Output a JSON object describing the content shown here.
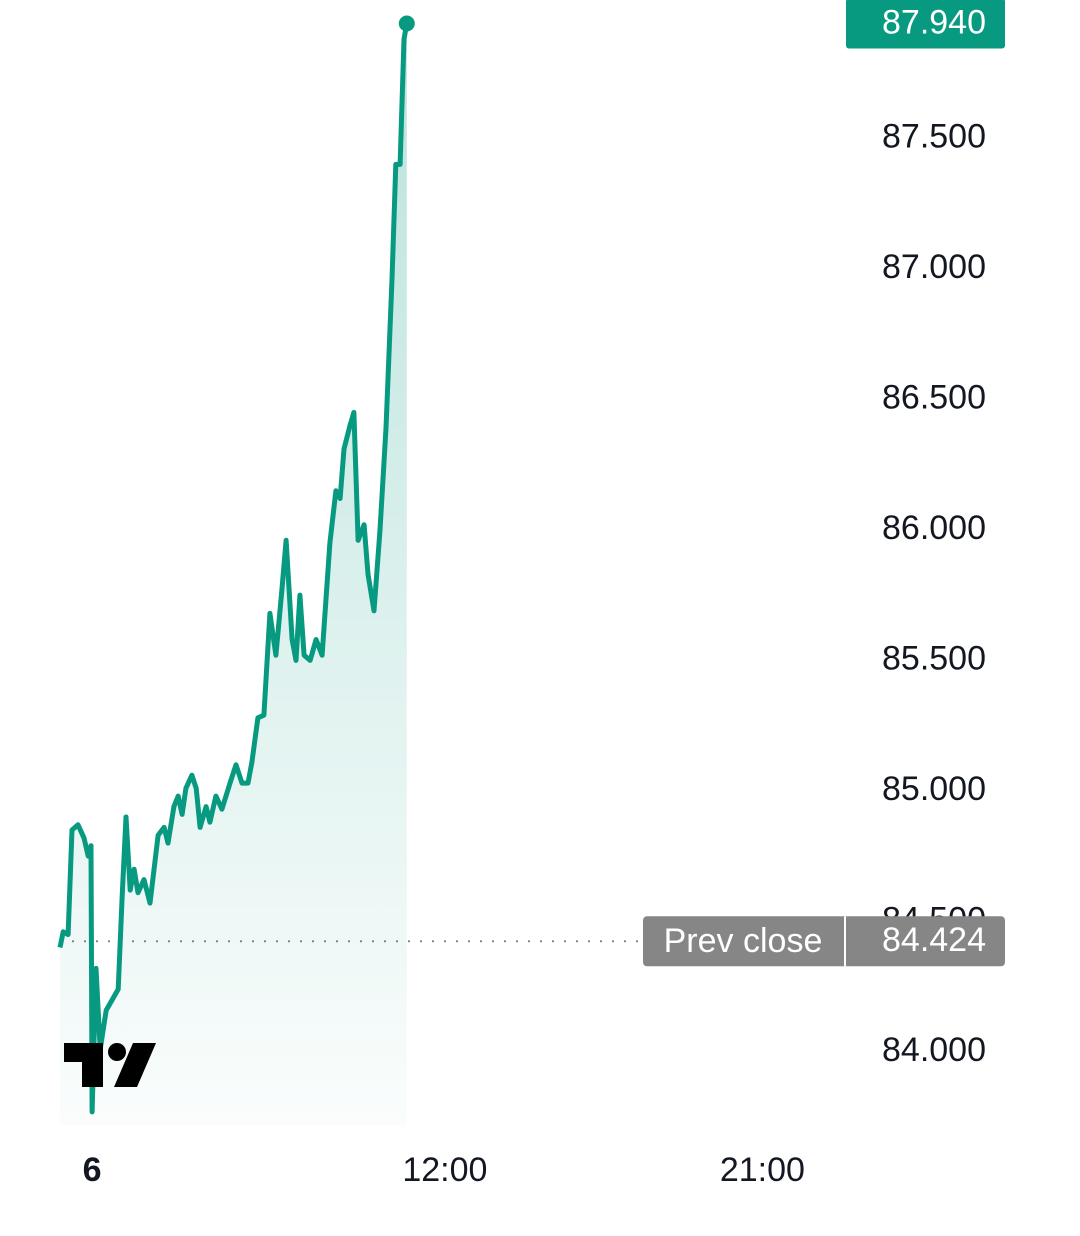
{
  "chart_data": {
    "type": "line",
    "x": [
      -0.91,
      -0.82,
      -0.68,
      -0.57,
      -0.4,
      -0.23,
      -0.11,
      -0.03,
      0.0,
      0.11,
      0.23,
      0.4,
      0.57,
      0.74,
      0.85,
      0.96,
      1.08,
      1.19,
      1.3,
      1.47,
      1.64,
      1.87,
      2.04,
      2.15,
      2.32,
      2.44,
      2.55,
      2.66,
      2.83,
      2.95,
      3.06,
      3.23,
      3.34,
      3.51,
      3.68,
      3.91,
      4.08,
      4.25,
      4.42,
      4.53,
      4.7,
      4.87,
      5.04,
      5.21,
      5.38,
      5.5,
      5.67,
      5.78,
      5.89,
      6.01,
      6.18,
      6.35,
      6.52,
      6.74,
      6.91,
      7.03,
      7.14,
      7.31,
      7.42,
      7.54,
      7.71,
      7.82,
      7.99,
      8.16,
      8.33,
      8.5,
      8.61,
      8.73,
      8.84,
      8.92
    ],
    "values": [
      84.4,
      84.46,
      84.45,
      84.85,
      84.87,
      84.82,
      84.75,
      84.79,
      83.77,
      84.32,
      84.01,
      84.16,
      84.2,
      84.24,
      84.59,
      84.9,
      84.62,
      84.7,
      84.61,
      84.66,
      84.57,
      84.83,
      84.86,
      84.8,
      84.94,
      84.98,
      84.91,
      85.01,
      85.06,
      85.01,
      84.86,
      84.94,
      84.88,
      84.98,
      84.93,
      85.03,
      85.1,
      85.03,
      85.03,
      85.11,
      85.28,
      85.29,
      85.68,
      85.52,
      85.77,
      85.96,
      85.58,
      85.5,
      85.75,
      85.52,
      85.5,
      85.58,
      85.52,
      85.95,
      86.15,
      86.12,
      86.31,
      86.4,
      86.45,
      85.96,
      86.02,
      85.83,
      85.69,
      86.0,
      86.39,
      86.96,
      87.4,
      87.4,
      87.88,
      87.94
    ],
    "color": "#089981",
    "xlim": [
      -0.91,
      21.2
    ],
    "xticks": [
      {
        "value": 0,
        "label": "6"
      },
      {
        "value": 10,
        "label": "12:00"
      },
      {
        "value": 19,
        "label": "21:00"
      }
    ],
    "ylim": [
      83.72,
      88.03
    ],
    "yticks": [
      {
        "value": 84,
        "label": "84.000"
      },
      {
        "value": 84.5,
        "label": "84.500"
      },
      {
        "value": 85,
        "label": "85.000"
      },
      {
        "value": 85.5,
        "label": "85.500"
      },
      {
        "value": 86,
        "label": "86.000"
      },
      {
        "value": 86.5,
        "label": "86.500"
      },
      {
        "value": 87,
        "label": "87.000"
      },
      {
        "value": 87.5,
        "label": "87.500"
      }
    ],
    "last_price": {
      "value": 87.94,
      "label": "87.940"
    },
    "prev_close": {
      "label": "Prev close",
      "value": 84.424,
      "value_label": "84.424"
    }
  }
}
